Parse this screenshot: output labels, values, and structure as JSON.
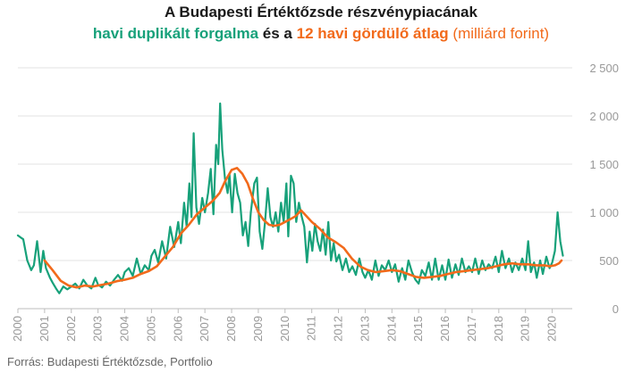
{
  "title": {
    "line1": "A Budapesti Értéktőzsde részvénypiacának",
    "series1_label": "havi duplikált forgalma",
    "connector": "és a",
    "series2_label": "12 havi gördülő átlag",
    "unit": "(milliárd forint)"
  },
  "source": "Forrás: Budapesti Értéktőzsde, Portfolio",
  "colors": {
    "monthly": "#17a17a",
    "rolling": "#f26a1b",
    "grid": "#e3e3e3",
    "axis_text": "#999999"
  },
  "chart_data": {
    "type": "line",
    "x_unit": "year",
    "xlim": [
      2000,
      2020.75
    ],
    "ylim": [
      0,
      2500
    ],
    "x_ticks": [
      "2000",
      "2001",
      "2002",
      "2003",
      "2004",
      "2005",
      "2006",
      "2007",
      "2008",
      "2009",
      "2010",
      "2011",
      "2012",
      "2013",
      "2014",
      "2015",
      "2016",
      "2017",
      "2018",
      "2019",
      "2020"
    ],
    "y_ticks": [
      0,
      500,
      1000,
      1500,
      2000,
      2500
    ],
    "y_tick_labels": [
      "0",
      "500",
      "1 000",
      "1 500",
      "2 000",
      "2 500"
    ],
    "grid": "horizontal",
    "series": [
      {
        "name": "havi duplikált forgalma",
        "color": "#17a17a",
        "points": [
          [
            2000.0,
            760
          ],
          [
            2000.1,
            740
          ],
          [
            2000.2,
            720
          ],
          [
            2000.35,
            500
          ],
          [
            2000.5,
            400
          ],
          [
            2000.6,
            450
          ],
          [
            2000.72,
            700
          ],
          [
            2000.85,
            380
          ],
          [
            2000.95,
            600
          ],
          [
            2001.05,
            420
          ],
          [
            2001.2,
            320
          ],
          [
            2001.3,
            270
          ],
          [
            2001.45,
            200
          ],
          [
            2001.55,
            160
          ],
          [
            2001.7,
            230
          ],
          [
            2001.85,
            200
          ],
          [
            2002.0,
            230
          ],
          [
            2002.15,
            260
          ],
          [
            2002.3,
            210
          ],
          [
            2002.45,
            300
          ],
          [
            2002.6,
            240
          ],
          [
            2002.75,
            210
          ],
          [
            2002.9,
            320
          ],
          [
            2003.0,
            250
          ],
          [
            2003.15,
            220
          ],
          [
            2003.3,
            280
          ],
          [
            2003.45,
            240
          ],
          [
            2003.6,
            300
          ],
          [
            2003.75,
            350
          ],
          [
            2003.9,
            290
          ],
          [
            2004.0,
            380
          ],
          [
            2004.15,
            420
          ],
          [
            2004.3,
            340
          ],
          [
            2004.45,
            520
          ],
          [
            2004.6,
            360
          ],
          [
            2004.75,
            450
          ],
          [
            2004.9,
            400
          ],
          [
            2005.0,
            550
          ],
          [
            2005.12,
            610
          ],
          [
            2005.25,
            480
          ],
          [
            2005.4,
            700
          ],
          [
            2005.55,
            520
          ],
          [
            2005.7,
            850
          ],
          [
            2005.85,
            640
          ],
          [
            2006.0,
            900
          ],
          [
            2006.1,
            680
          ],
          [
            2006.22,
            1100
          ],
          [
            2006.32,
            850
          ],
          [
            2006.42,
            1300
          ],
          [
            2006.5,
            950
          ],
          [
            2006.58,
            1820
          ],
          [
            2006.68,
            1050
          ],
          [
            2006.78,
            880
          ],
          [
            2006.9,
            1150
          ],
          [
            2007.0,
            1000
          ],
          [
            2007.12,
            1200
          ],
          [
            2007.22,
            1450
          ],
          [
            2007.32,
            980
          ],
          [
            2007.42,
            1700
          ],
          [
            2007.5,
            1500
          ],
          [
            2007.57,
            2130
          ],
          [
            2007.65,
            1650
          ],
          [
            2007.75,
            1350
          ],
          [
            2007.85,
            1200
          ],
          [
            2007.92,
            1400
          ],
          [
            2008.02,
            1000
          ],
          [
            2008.12,
            1400
          ],
          [
            2008.22,
            1200
          ],
          [
            2008.32,
            1100
          ],
          [
            2008.42,
            760
          ],
          [
            2008.52,
            900
          ],
          [
            2008.62,
            650
          ],
          [
            2008.72,
            1000
          ],
          [
            2008.85,
            1300
          ],
          [
            2008.95,
            1360
          ],
          [
            2009.05,
            800
          ],
          [
            2009.15,
            620
          ],
          [
            2009.25,
            900
          ],
          [
            2009.35,
            1250
          ],
          [
            2009.45,
            950
          ],
          [
            2009.55,
            850
          ],
          [
            2009.65,
            1000
          ],
          [
            2009.75,
            800
          ],
          [
            2009.85,
            1100
          ],
          [
            2009.95,
            900
          ],
          [
            2010.05,
            1300
          ],
          [
            2010.12,
            750
          ],
          [
            2010.22,
            1380
          ],
          [
            2010.32,
            1300
          ],
          [
            2010.42,
            900
          ],
          [
            2010.52,
            1100
          ],
          [
            2010.62,
            960
          ],
          [
            2010.72,
            850
          ],
          [
            2010.82,
            480
          ],
          [
            2010.92,
            800
          ],
          [
            2011.02,
            600
          ],
          [
            2011.12,
            880
          ],
          [
            2011.22,
            700
          ],
          [
            2011.32,
            600
          ],
          [
            2011.42,
            820
          ],
          [
            2011.52,
            560
          ],
          [
            2011.62,
            900
          ],
          [
            2011.72,
            500
          ],
          [
            2011.82,
            680
          ],
          [
            2011.92,
            490
          ],
          [
            2012.02,
            560
          ],
          [
            2012.15,
            400
          ],
          [
            2012.28,
            520
          ],
          [
            2012.4,
            380
          ],
          [
            2012.52,
            440
          ],
          [
            2012.65,
            350
          ],
          [
            2012.78,
            520
          ],
          [
            2012.9,
            380
          ],
          [
            2013.0,
            320
          ],
          [
            2013.12,
            400
          ],
          [
            2013.25,
            300
          ],
          [
            2013.38,
            500
          ],
          [
            2013.5,
            340
          ],
          [
            2013.62,
            450
          ],
          [
            2013.75,
            400
          ],
          [
            2013.88,
            500
          ],
          [
            2014.0,
            380
          ],
          [
            2014.12,
            460
          ],
          [
            2014.25,
            280
          ],
          [
            2014.38,
            420
          ],
          [
            2014.5,
            300
          ],
          [
            2014.62,
            500
          ],
          [
            2014.75,
            380
          ],
          [
            2014.88,
            300
          ],
          [
            2015.0,
            260
          ],
          [
            2015.12,
            400
          ],
          [
            2015.25,
            340
          ],
          [
            2015.38,
            480
          ],
          [
            2015.5,
            300
          ],
          [
            2015.62,
            520
          ],
          [
            2015.75,
            300
          ],
          [
            2015.88,
            450
          ],
          [
            2016.0,
            300
          ],
          [
            2016.12,
            510
          ],
          [
            2016.25,
            320
          ],
          [
            2016.38,
            460
          ],
          [
            2016.5,
            350
          ],
          [
            2016.62,
            520
          ],
          [
            2016.75,
            380
          ],
          [
            2016.88,
            440
          ],
          [
            2017.0,
            380
          ],
          [
            2017.12,
            520
          ],
          [
            2017.25,
            360
          ],
          [
            2017.38,
            500
          ],
          [
            2017.5,
            400
          ],
          [
            2017.62,
            460
          ],
          [
            2017.75,
            420
          ],
          [
            2017.88,
            540
          ],
          [
            2018.0,
            380
          ],
          [
            2018.12,
            600
          ],
          [
            2018.25,
            420
          ],
          [
            2018.38,
            520
          ],
          [
            2018.5,
            380
          ],
          [
            2018.62,
            480
          ],
          [
            2018.75,
            400
          ],
          [
            2018.88,
            520
          ],
          [
            2019.0,
            400
          ],
          [
            2019.1,
            700
          ],
          [
            2019.2,
            380
          ],
          [
            2019.32,
            480
          ],
          [
            2019.42,
            320
          ],
          [
            2019.55,
            500
          ],
          [
            2019.65,
            360
          ],
          [
            2019.78,
            540
          ],
          [
            2019.9,
            420
          ],
          [
            2020.0,
            480
          ],
          [
            2020.1,
            600
          ],
          [
            2020.2,
            1000
          ],
          [
            2020.3,
            700
          ],
          [
            2020.4,
            550
          ]
        ]
      },
      {
        "name": "12 havi gördülő átlag",
        "color": "#f26a1b",
        "points": [
          [
            2001.0,
            500
          ],
          [
            2001.3,
            400
          ],
          [
            2001.6,
            290
          ],
          [
            2001.9,
            240
          ],
          [
            2002.2,
            220
          ],
          [
            2002.5,
            240
          ],
          [
            2002.8,
            230
          ],
          [
            2003.1,
            245
          ],
          [
            2003.4,
            260
          ],
          [
            2003.7,
            285
          ],
          [
            2004.0,
            300
          ],
          [
            2004.3,
            320
          ],
          [
            2004.6,
            360
          ],
          [
            2004.9,
            390
          ],
          [
            2005.2,
            440
          ],
          [
            2005.5,
            540
          ],
          [
            2005.8,
            640
          ],
          [
            2006.1,
            780
          ],
          [
            2006.4,
            870
          ],
          [
            2006.7,
            980
          ],
          [
            2007.0,
            1050
          ],
          [
            2007.3,
            1120
          ],
          [
            2007.55,
            1200
          ],
          [
            2007.75,
            1320
          ],
          [
            2008.0,
            1440
          ],
          [
            2008.2,
            1460
          ],
          [
            2008.4,
            1400
          ],
          [
            2008.6,
            1300
          ],
          [
            2008.8,
            1140
          ],
          [
            2009.0,
            1000
          ],
          [
            2009.2,
            920
          ],
          [
            2009.4,
            870
          ],
          [
            2009.6,
            860
          ],
          [
            2009.8,
            870
          ],
          [
            2010.0,
            900
          ],
          [
            2010.2,
            930
          ],
          [
            2010.4,
            960
          ],
          [
            2010.6,
            1020
          ],
          [
            2010.8,
            960
          ],
          [
            2011.0,
            900
          ],
          [
            2011.3,
            830
          ],
          [
            2011.6,
            740
          ],
          [
            2011.9,
            690
          ],
          [
            2012.2,
            630
          ],
          [
            2012.5,
            520
          ],
          [
            2012.8,
            440
          ],
          [
            2013.1,
            400
          ],
          [
            2013.4,
            380
          ],
          [
            2013.7,
            390
          ],
          [
            2014.0,
            400
          ],
          [
            2014.3,
            390
          ],
          [
            2014.6,
            360
          ],
          [
            2014.9,
            330
          ],
          [
            2015.2,
            320
          ],
          [
            2015.5,
            330
          ],
          [
            2015.8,
            340
          ],
          [
            2016.1,
            360
          ],
          [
            2016.4,
            380
          ],
          [
            2016.7,
            390
          ],
          [
            2017.0,
            400
          ],
          [
            2017.3,
            410
          ],
          [
            2017.6,
            420
          ],
          [
            2017.9,
            440
          ],
          [
            2018.2,
            460
          ],
          [
            2018.5,
            470
          ],
          [
            2018.8,
            460
          ],
          [
            2019.1,
            460
          ],
          [
            2019.4,
            450
          ],
          [
            2019.7,
            450
          ],
          [
            2019.9,
            440
          ],
          [
            2020.1,
            450
          ],
          [
            2020.25,
            470
          ],
          [
            2020.35,
            500
          ]
        ]
      }
    ]
  }
}
